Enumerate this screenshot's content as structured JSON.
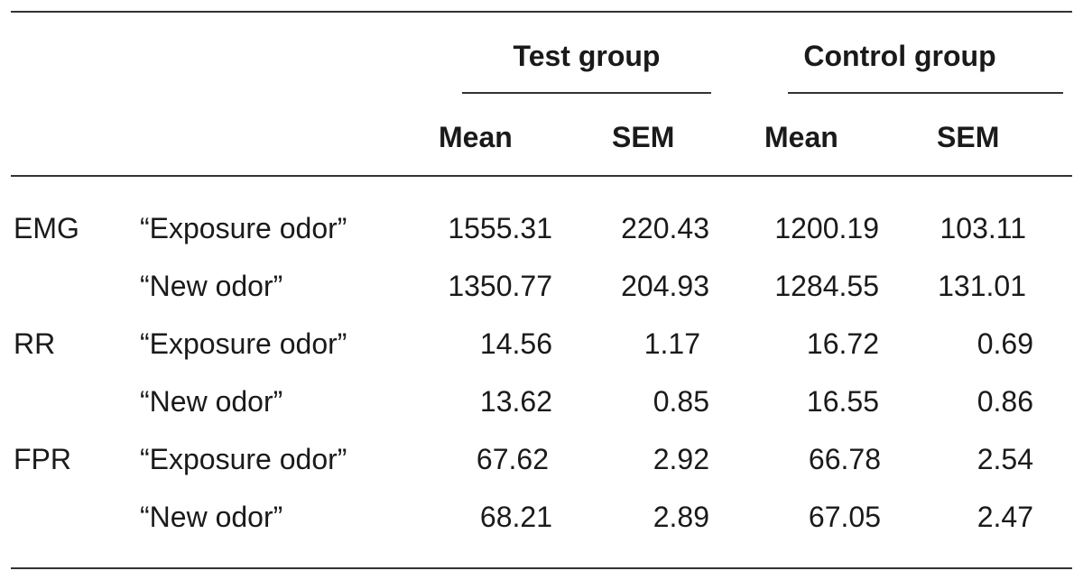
{
  "header": {
    "groups": [
      "Test group",
      "Control group"
    ],
    "columns": [
      "Mean",
      "SEM",
      "Mean",
      "SEM"
    ]
  },
  "rows": [
    {
      "measure": "EMG",
      "condition": "“Exposure odor”",
      "values": [
        "1555.31",
        "220.43",
        "1200.19",
        "103.11"
      ]
    },
    {
      "measure": "",
      "condition": "“New odor”",
      "values": [
        "1350.77",
        "204.93",
        "1284.55",
        "131.01"
      ]
    },
    {
      "measure": "RR",
      "condition": "“Exposure odor”",
      "values": [
        "14.56",
        "1.17",
        "16.72",
        "0.69"
      ]
    },
    {
      "measure": "",
      "condition": "“New odor”",
      "values": [
        "13.62",
        "0.85",
        "16.55",
        "0.86"
      ]
    },
    {
      "measure": "FPR",
      "condition": "“Exposure odor”",
      "values": [
        "67.62",
        "2.92",
        "66.78",
        "2.54"
      ]
    },
    {
      "measure": "",
      "condition": "“New odor”",
      "values": [
        "68.21",
        "2.89",
        "67.05",
        "2.47"
      ]
    }
  ]
}
